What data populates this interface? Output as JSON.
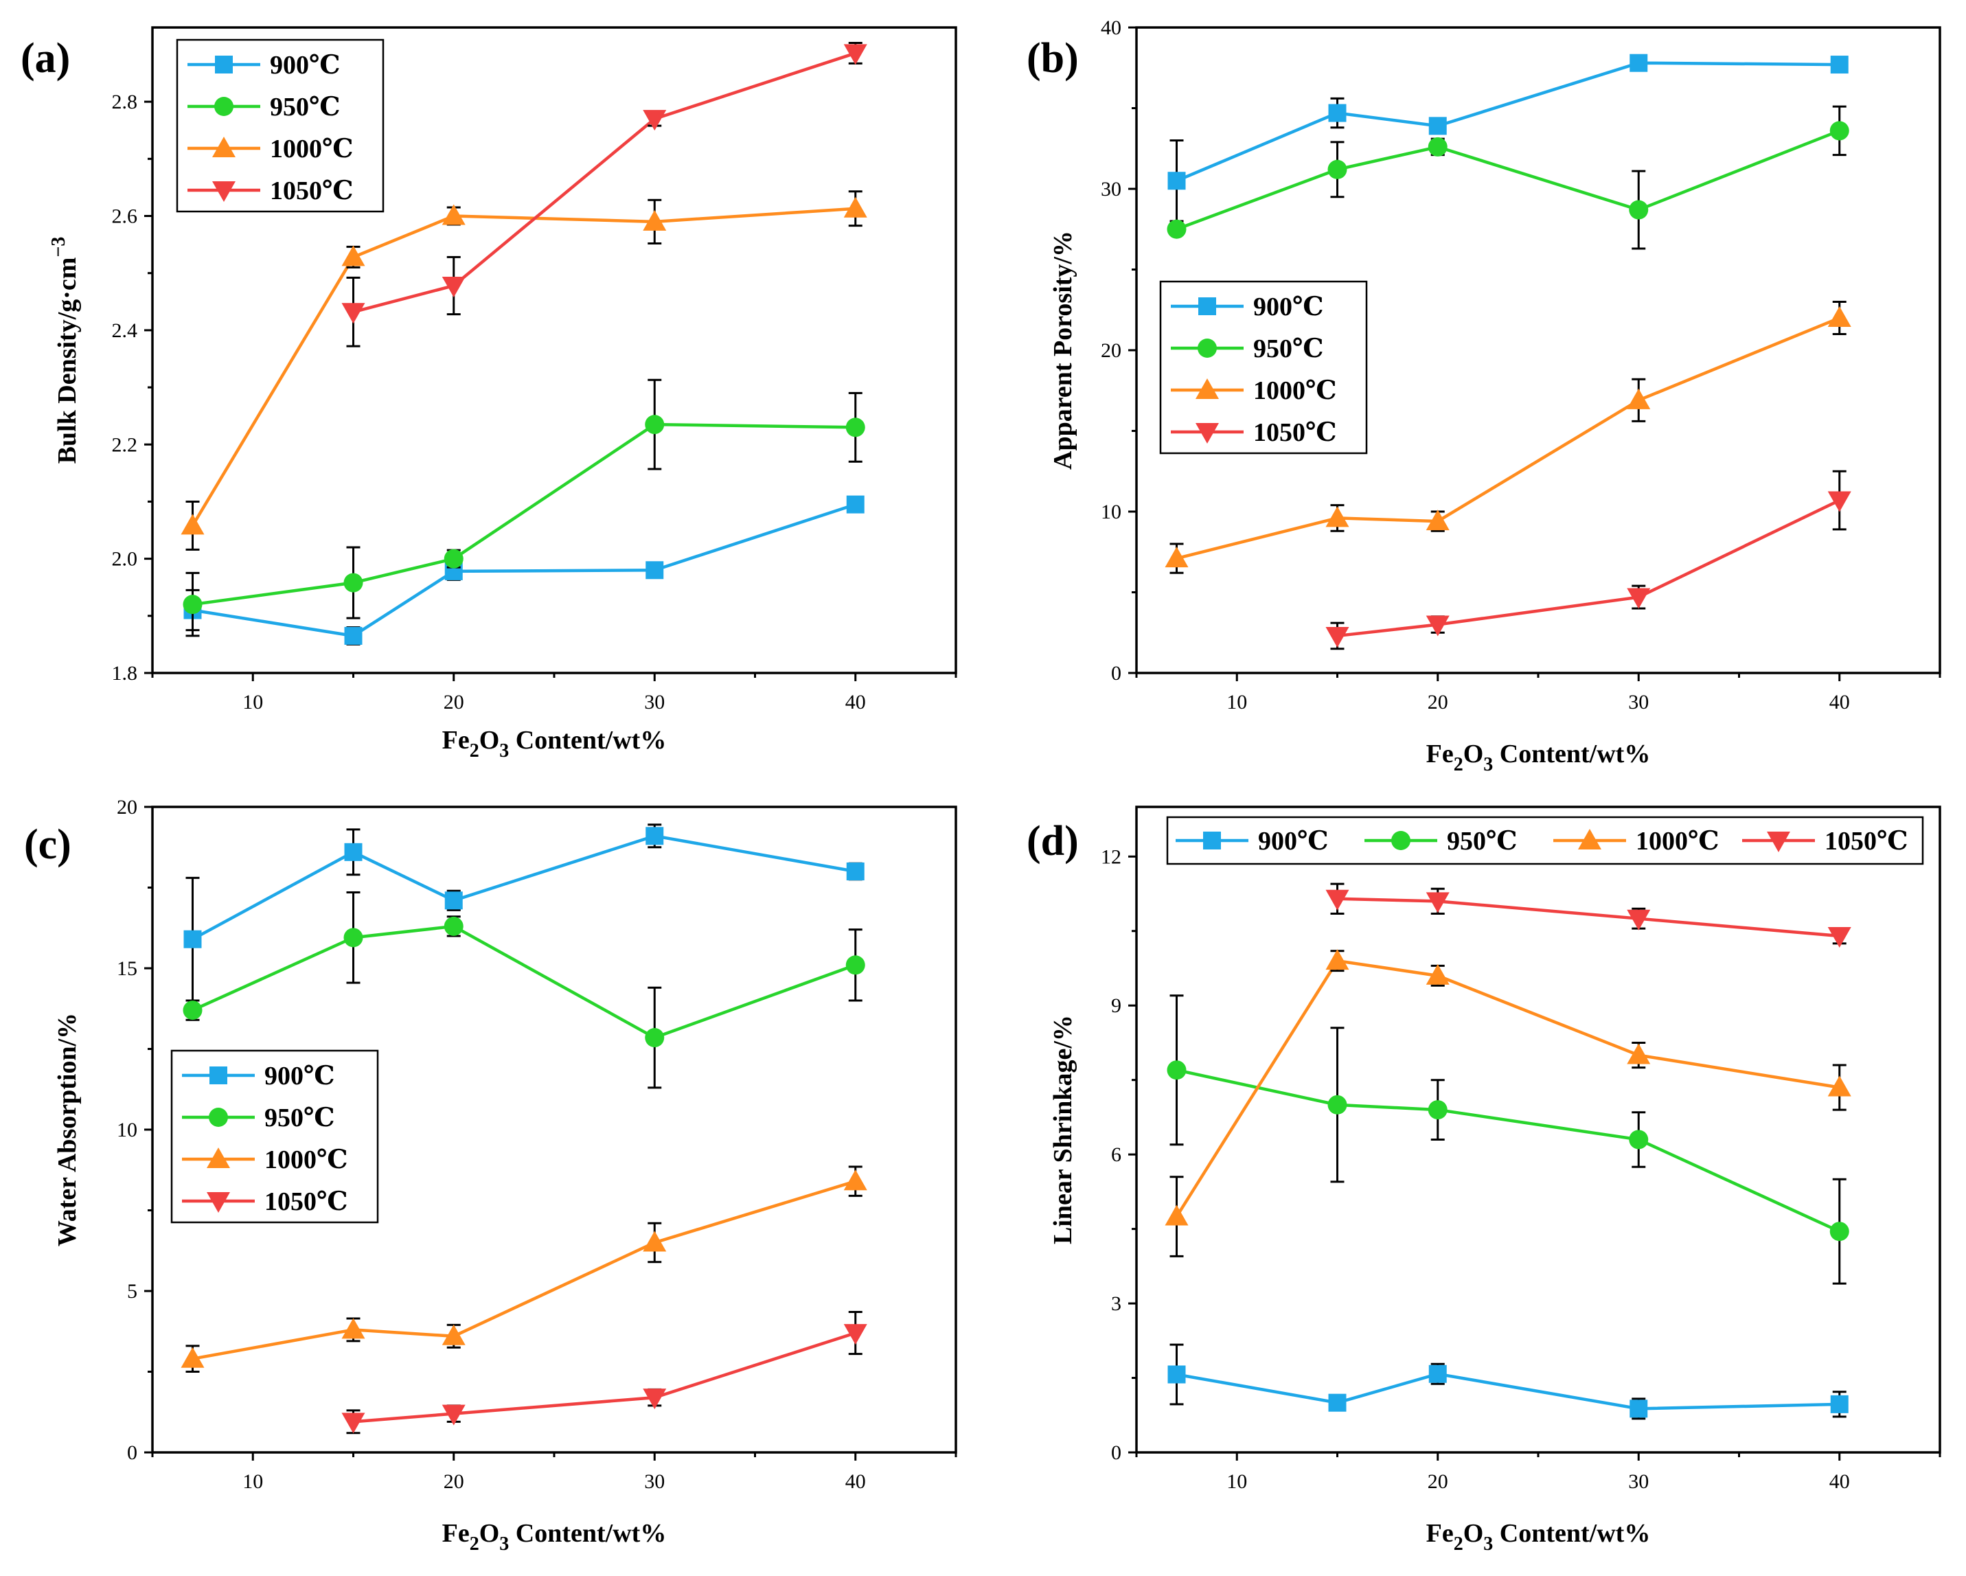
{
  "chart_data": [
    {
      "type": "line",
      "panel_label": "(a)",
      "xlabel": {
        "pre": "Fe",
        "s1": "2",
        "mid": "O",
        "s2": "3",
        "post": " Content/wt%"
      },
      "ylabel": {
        "main": "Bulk Density/g·cm",
        "sup": "−3"
      },
      "xlim": [
        5,
        45
      ],
      "ylim": [
        1.8,
        2.93
      ],
      "xticks": [
        10,
        20,
        30,
        40
      ],
      "xtick_labels": [
        "10",
        "20",
        "30",
        "40"
      ],
      "yticks": [
        1.8,
        2.0,
        2.2,
        2.4,
        2.6,
        2.8
      ],
      "ytick_labels": [
        "1.8",
        "2.0",
        "2.2",
        "2.4",
        "2.6",
        "2.8"
      ],
      "legend_position": "top-left",
      "legend_layout": "vertical",
      "series": [
        {
          "name": "900℃",
          "color": "#1EA7E8",
          "marker": "square",
          "x": [
            7,
            15,
            20,
            30,
            40
          ],
          "y": [
            1.91,
            1.865,
            1.978,
            1.98,
            2.095
          ],
          "err": [
            0.035,
            0.015,
            0.015,
            0.012,
            0.012
          ]
        },
        {
          "name": "950℃",
          "color": "#28D42C",
          "marker": "circle",
          "x": [
            7,
            15,
            20,
            30,
            40
          ],
          "y": [
            1.92,
            1.958,
            2.0,
            2.235,
            2.23
          ],
          "err": [
            0.055,
            0.062,
            0.015,
            0.078,
            0.06
          ]
        },
        {
          "name": "1000℃",
          "color": "#FF8C1E",
          "marker": "triangle-up",
          "x": [
            7,
            15,
            20,
            30,
            40
          ],
          "y": [
            2.058,
            2.528,
            2.6,
            2.59,
            2.613
          ],
          "err": [
            0.042,
            0.018,
            0.015,
            0.038,
            0.03
          ]
        },
        {
          "name": "1050℃",
          "color": "#F04040",
          "marker": "triangle-down",
          "x": [
            15,
            20,
            30,
            40
          ],
          "y": [
            2.432,
            2.478,
            2.77,
            2.885
          ],
          "err": [
            0.06,
            0.05,
            0.012,
            0.018
          ]
        }
      ]
    },
    {
      "type": "line",
      "panel_label": "(b)",
      "xlabel": {
        "pre": "Fe",
        "s1": "2",
        "mid": "O",
        "s2": "3",
        "post": " Content/wt%"
      },
      "ylabel": {
        "main": "Apparent Porosity/%",
        "sup": ""
      },
      "xlim": [
        5,
        45
      ],
      "ylim": [
        0,
        40
      ],
      "xticks": [
        10,
        20,
        30,
        40
      ],
      "xtick_labels": [
        "10",
        "20",
        "30",
        "40"
      ],
      "yticks": [
        0,
        10,
        20,
        30,
        40
      ],
      "ytick_labels": [
        "0",
        "10",
        "20",
        "30",
        "40"
      ],
      "legend_position": "middle-left",
      "legend_layout": "vertical",
      "series": [
        {
          "name": "900℃",
          "color": "#1EA7E8",
          "marker": "square",
          "x": [
            7,
            15,
            20,
            30,
            40
          ],
          "y": [
            30.5,
            34.7,
            33.9,
            37.8,
            37.7
          ],
          "err": [
            2.5,
            0.9,
            0.4,
            0.4,
            0.3
          ]
        },
        {
          "name": "950℃",
          "color": "#28D42C",
          "marker": "circle",
          "x": [
            7,
            15,
            20,
            30,
            40
          ],
          "y": [
            27.5,
            31.2,
            32.6,
            28.7,
            33.6
          ],
          "err": [
            0.3,
            1.7,
            0.5,
            2.4,
            1.5
          ]
        },
        {
          "name": "1000℃",
          "color": "#FF8C1E",
          "marker": "triangle-up",
          "x": [
            7,
            15,
            20,
            30,
            40
          ],
          "y": [
            7.1,
            9.6,
            9.4,
            16.9,
            22.0
          ],
          "err": [
            0.9,
            0.8,
            0.6,
            1.3,
            1.0
          ]
        },
        {
          "name": "1050℃",
          "color": "#F04040",
          "marker": "triangle-down",
          "x": [
            15,
            20,
            30,
            40
          ],
          "y": [
            2.3,
            3.0,
            4.7,
            10.7
          ],
          "err": [
            0.8,
            0.5,
            0.7,
            1.8
          ]
        }
      ]
    },
    {
      "type": "line",
      "panel_label": "(c)",
      "xlabel": {
        "pre": "Fe",
        "s1": "2",
        "mid": "O",
        "s2": "3",
        "post": " Content/wt%"
      },
      "ylabel": {
        "main": "Water Absorption/%",
        "sup": ""
      },
      "xlim": [
        5,
        45
      ],
      "ylim": [
        0,
        20
      ],
      "xticks": [
        10,
        20,
        30,
        40
      ],
      "xtick_labels": [
        "10",
        "20",
        "30",
        "40"
      ],
      "yticks": [
        0,
        5,
        10,
        15,
        20
      ],
      "ytick_labels": [
        "0",
        "5",
        "10",
        "15",
        "20"
      ],
      "legend_position": "middle-left",
      "legend_layout": "vertical",
      "series": [
        {
          "name": "900℃",
          "color": "#1EA7E8",
          "marker": "square",
          "x": [
            7,
            15,
            20,
            30,
            40
          ],
          "y": [
            15.9,
            18.6,
            17.1,
            19.1,
            18.0
          ],
          "err": [
            1.9,
            0.7,
            0.3,
            0.35,
            0.25
          ]
        },
        {
          "name": "950℃",
          "color": "#28D42C",
          "marker": "circle",
          "x": [
            7,
            15,
            20,
            30,
            40
          ],
          "y": [
            13.7,
            15.95,
            16.3,
            12.85,
            15.1
          ],
          "err": [
            0.3,
            1.4,
            0.3,
            1.55,
            1.1
          ]
        },
        {
          "name": "1000℃",
          "color": "#FF8C1E",
          "marker": "triangle-up",
          "x": [
            7,
            15,
            20,
            30,
            40
          ],
          "y": [
            2.9,
            3.8,
            3.6,
            6.5,
            8.4
          ],
          "err": [
            0.4,
            0.35,
            0.35,
            0.6,
            0.45
          ]
        },
        {
          "name": "1050℃",
          "color": "#F04040",
          "marker": "triangle-down",
          "x": [
            15,
            20,
            30,
            40
          ],
          "y": [
            0.95,
            1.2,
            1.7,
            3.7
          ],
          "err": [
            0.35,
            0.25,
            0.25,
            0.65
          ]
        }
      ]
    },
    {
      "type": "line",
      "panel_label": "(d)",
      "xlabel": {
        "pre": "Fe",
        "s1": "2",
        "mid": "O",
        "s2": "3",
        "post": " Content/wt%"
      },
      "ylabel": {
        "main": "Linear Shrinkage/%",
        "sup": ""
      },
      "xlim": [
        5,
        45
      ],
      "ylim": [
        0,
        13
      ],
      "xticks": [
        10,
        20,
        30,
        40
      ],
      "xtick_labels": [
        "10",
        "20",
        "30",
        "40"
      ],
      "yticks": [
        0,
        3,
        6,
        9,
        12
      ],
      "ytick_labels": [
        "0",
        "3",
        "6",
        "9",
        "12"
      ],
      "legend_position": "top",
      "legend_layout": "horizontal",
      "series": [
        {
          "name": "900℃",
          "color": "#1EA7E8",
          "marker": "square",
          "x": [
            7,
            15,
            20,
            30,
            40
          ],
          "y": [
            1.57,
            1.0,
            1.58,
            0.88,
            0.97
          ],
          "err": [
            0.6,
            0.15,
            0.2,
            0.2,
            0.25
          ]
        },
        {
          "name": "950℃",
          "color": "#28D42C",
          "marker": "circle",
          "x": [
            7,
            15,
            20,
            30,
            40
          ],
          "y": [
            7.7,
            7.0,
            6.9,
            6.3,
            4.45
          ],
          "err": [
            1.5,
            1.55,
            0.6,
            0.55,
            1.05
          ]
        },
        {
          "name": "1000℃",
          "color": "#FF8C1E",
          "marker": "triangle-up",
          "x": [
            7,
            15,
            20,
            30,
            40
          ],
          "y": [
            4.75,
            9.9,
            9.6,
            8.0,
            7.35
          ],
          "err": [
            0.8,
            0.2,
            0.2,
            0.25,
            0.45
          ]
        },
        {
          "name": "1050℃",
          "color": "#F04040",
          "marker": "triangle-down",
          "x": [
            15,
            20,
            30,
            40
          ],
          "y": [
            11.15,
            11.1,
            10.75,
            10.4
          ],
          "err": [
            0.3,
            0.25,
            0.2,
            0.15
          ]
        }
      ]
    }
  ]
}
